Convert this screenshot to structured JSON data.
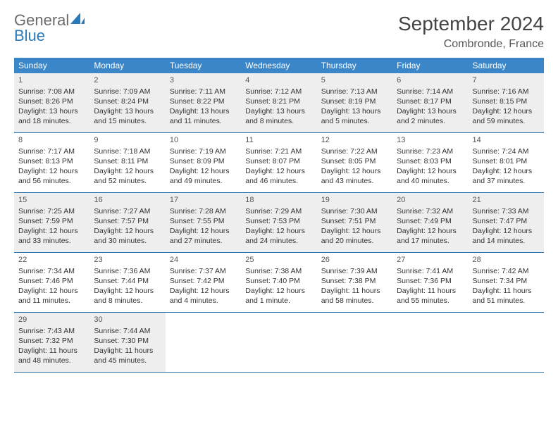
{
  "logo": {
    "textMain": "General",
    "textAccent": "Blue"
  },
  "title": "September 2024",
  "location": "Combronde, France",
  "colors": {
    "headerBar": "#3a86c8",
    "weekDivider": "#2a6ea8",
    "shaded": "#eeeeee",
    "text": "#333333",
    "logoAccent": "#2a7ab9",
    "logoMain": "#6b6b6b"
  },
  "daysOfWeek": [
    "Sunday",
    "Monday",
    "Tuesday",
    "Wednesday",
    "Thursday",
    "Friday",
    "Saturday"
  ],
  "weeks": [
    {
      "shaded": true,
      "days": [
        {
          "num": "1",
          "sunrise": "Sunrise: 7:08 AM",
          "sunset": "Sunset: 8:26 PM",
          "daylight": "Daylight: 13 hours and 18 minutes."
        },
        {
          "num": "2",
          "sunrise": "Sunrise: 7:09 AM",
          "sunset": "Sunset: 8:24 PM",
          "daylight": "Daylight: 13 hours and 15 minutes."
        },
        {
          "num": "3",
          "sunrise": "Sunrise: 7:11 AM",
          "sunset": "Sunset: 8:22 PM",
          "daylight": "Daylight: 13 hours and 11 minutes."
        },
        {
          "num": "4",
          "sunrise": "Sunrise: 7:12 AM",
          "sunset": "Sunset: 8:21 PM",
          "daylight": "Daylight: 13 hours and 8 minutes."
        },
        {
          "num": "5",
          "sunrise": "Sunrise: 7:13 AM",
          "sunset": "Sunset: 8:19 PM",
          "daylight": "Daylight: 13 hours and 5 minutes."
        },
        {
          "num": "6",
          "sunrise": "Sunrise: 7:14 AM",
          "sunset": "Sunset: 8:17 PM",
          "daylight": "Daylight: 13 hours and 2 minutes."
        },
        {
          "num": "7",
          "sunrise": "Sunrise: 7:16 AM",
          "sunset": "Sunset: 8:15 PM",
          "daylight": "Daylight: 12 hours and 59 minutes."
        }
      ]
    },
    {
      "shaded": false,
      "days": [
        {
          "num": "8",
          "sunrise": "Sunrise: 7:17 AM",
          "sunset": "Sunset: 8:13 PM",
          "daylight": "Daylight: 12 hours and 56 minutes."
        },
        {
          "num": "9",
          "sunrise": "Sunrise: 7:18 AM",
          "sunset": "Sunset: 8:11 PM",
          "daylight": "Daylight: 12 hours and 52 minutes."
        },
        {
          "num": "10",
          "sunrise": "Sunrise: 7:19 AM",
          "sunset": "Sunset: 8:09 PM",
          "daylight": "Daylight: 12 hours and 49 minutes."
        },
        {
          "num": "11",
          "sunrise": "Sunrise: 7:21 AM",
          "sunset": "Sunset: 8:07 PM",
          "daylight": "Daylight: 12 hours and 46 minutes."
        },
        {
          "num": "12",
          "sunrise": "Sunrise: 7:22 AM",
          "sunset": "Sunset: 8:05 PM",
          "daylight": "Daylight: 12 hours and 43 minutes."
        },
        {
          "num": "13",
          "sunrise": "Sunrise: 7:23 AM",
          "sunset": "Sunset: 8:03 PM",
          "daylight": "Daylight: 12 hours and 40 minutes."
        },
        {
          "num": "14",
          "sunrise": "Sunrise: 7:24 AM",
          "sunset": "Sunset: 8:01 PM",
          "daylight": "Daylight: 12 hours and 37 minutes."
        }
      ]
    },
    {
      "shaded": true,
      "days": [
        {
          "num": "15",
          "sunrise": "Sunrise: 7:25 AM",
          "sunset": "Sunset: 7:59 PM",
          "daylight": "Daylight: 12 hours and 33 minutes."
        },
        {
          "num": "16",
          "sunrise": "Sunrise: 7:27 AM",
          "sunset": "Sunset: 7:57 PM",
          "daylight": "Daylight: 12 hours and 30 minutes."
        },
        {
          "num": "17",
          "sunrise": "Sunrise: 7:28 AM",
          "sunset": "Sunset: 7:55 PM",
          "daylight": "Daylight: 12 hours and 27 minutes."
        },
        {
          "num": "18",
          "sunrise": "Sunrise: 7:29 AM",
          "sunset": "Sunset: 7:53 PM",
          "daylight": "Daylight: 12 hours and 24 minutes."
        },
        {
          "num": "19",
          "sunrise": "Sunrise: 7:30 AM",
          "sunset": "Sunset: 7:51 PM",
          "daylight": "Daylight: 12 hours and 20 minutes."
        },
        {
          "num": "20",
          "sunrise": "Sunrise: 7:32 AM",
          "sunset": "Sunset: 7:49 PM",
          "daylight": "Daylight: 12 hours and 17 minutes."
        },
        {
          "num": "21",
          "sunrise": "Sunrise: 7:33 AM",
          "sunset": "Sunset: 7:47 PM",
          "daylight": "Daylight: 12 hours and 14 minutes."
        }
      ]
    },
    {
      "shaded": false,
      "days": [
        {
          "num": "22",
          "sunrise": "Sunrise: 7:34 AM",
          "sunset": "Sunset: 7:46 PM",
          "daylight": "Daylight: 12 hours and 11 minutes."
        },
        {
          "num": "23",
          "sunrise": "Sunrise: 7:36 AM",
          "sunset": "Sunset: 7:44 PM",
          "daylight": "Daylight: 12 hours and 8 minutes."
        },
        {
          "num": "24",
          "sunrise": "Sunrise: 7:37 AM",
          "sunset": "Sunset: 7:42 PM",
          "daylight": "Daylight: 12 hours and 4 minutes."
        },
        {
          "num": "25",
          "sunrise": "Sunrise: 7:38 AM",
          "sunset": "Sunset: 7:40 PM",
          "daylight": "Daylight: 12 hours and 1 minute."
        },
        {
          "num": "26",
          "sunrise": "Sunrise: 7:39 AM",
          "sunset": "Sunset: 7:38 PM",
          "daylight": "Daylight: 11 hours and 58 minutes."
        },
        {
          "num": "27",
          "sunrise": "Sunrise: 7:41 AM",
          "sunset": "Sunset: 7:36 PM",
          "daylight": "Daylight: 11 hours and 55 minutes."
        },
        {
          "num": "28",
          "sunrise": "Sunrise: 7:42 AM",
          "sunset": "Sunset: 7:34 PM",
          "daylight": "Daylight: 11 hours and 51 minutes."
        }
      ]
    },
    {
      "shaded": true,
      "days": [
        {
          "num": "29",
          "sunrise": "Sunrise: 7:43 AM",
          "sunset": "Sunset: 7:32 PM",
          "daylight": "Daylight: 11 hours and 48 minutes."
        },
        {
          "num": "30",
          "sunrise": "Sunrise: 7:44 AM",
          "sunset": "Sunset: 7:30 PM",
          "daylight": "Daylight: 11 hours and 45 minutes."
        },
        {
          "empty": true
        },
        {
          "empty": true
        },
        {
          "empty": true
        },
        {
          "empty": true
        },
        {
          "empty": true
        }
      ]
    }
  ]
}
